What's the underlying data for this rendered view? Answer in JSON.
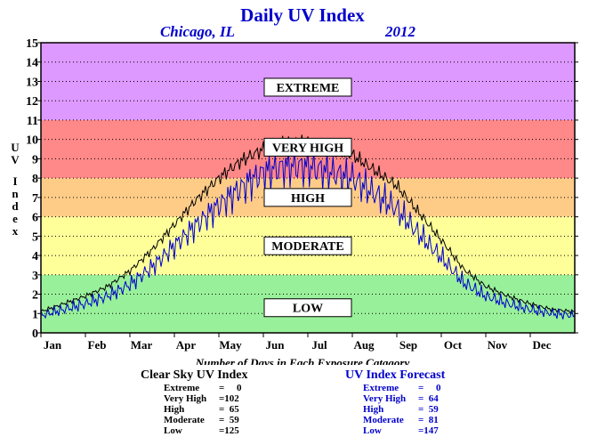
{
  "chart_data": {
    "type": "line",
    "title": "Daily UV Index",
    "subtitle_location": "Chicago, IL",
    "subtitle_year": "2012",
    "ylabel": "UV Index",
    "xlabel": "",
    "ylim": [
      0,
      15
    ],
    "yticks": [
      0,
      1,
      2,
      3,
      4,
      5,
      6,
      7,
      8,
      9,
      10,
      11,
      12,
      13,
      14,
      15
    ],
    "xticks": [
      "Jan",
      "Feb",
      "Mar",
      "Apr",
      "May",
      "Jun",
      "Jul",
      "Aug",
      "Sep",
      "Oct",
      "Nov",
      "Dec"
    ],
    "grid": "dotted horizontal",
    "bands": [
      {
        "label": "LOW",
        "from": 0,
        "to": 3,
        "color": "#99f09a",
        "label_y": 1.6
      },
      {
        "label": "MODERATE",
        "from": 3,
        "to": 6,
        "color": "#ffff99",
        "label_y": 5.6
      },
      {
        "label": "HIGH",
        "from": 6,
        "to": 8,
        "color": "#ffcc88",
        "label_y": 8.8
      },
      {
        "label": "VERY HIGH",
        "from": 8,
        "to": 11,
        "color": "#ff8888",
        "label_y": 12.0
      },
      {
        "label": "EXTREME",
        "from": 11,
        "to": 15,
        "color": "#dd99ff",
        "label_y": 16.2
      }
    ],
    "series": [
      {
        "name": "Clear Sky UV Index",
        "color": "#000000",
        "x_months": [
          0.0,
          0.5,
          1.0,
          1.5,
          2.0,
          2.5,
          3.0,
          3.5,
          4.0,
          4.5,
          5.0,
          5.5,
          6.0,
          6.5,
          7.0,
          7.5,
          8.0,
          8.5,
          9.0,
          9.5,
          10.0,
          10.5,
          11.0,
          11.5,
          12.0
        ],
        "y": [
          1.1,
          1.5,
          1.9,
          2.4,
          3.2,
          4.3,
          5.6,
          6.9,
          8.0,
          8.9,
          9.5,
          9.8,
          9.8,
          9.5,
          9.2,
          8.4,
          7.6,
          6.2,
          4.8,
          3.3,
          2.4,
          1.9,
          1.5,
          1.2,
          1.1
        ]
      },
      {
        "name": "UV Index Forecast",
        "color": "#0000cc",
        "x_months": [
          0.0,
          0.5,
          1.0,
          1.5,
          2.0,
          2.5,
          3.0,
          3.5,
          4.0,
          4.5,
          5.0,
          5.5,
          6.0,
          6.5,
          7.0,
          7.5,
          8.0,
          8.5,
          9.0,
          9.5,
          10.0,
          10.5,
          11.0,
          11.5,
          12.0
        ],
        "y": [
          0.9,
          1.2,
          1.5,
          1.9,
          2.5,
          3.4,
          4.5,
          5.6,
          6.6,
          7.5,
          8.3,
          8.6,
          8.6,
          8.3,
          8.0,
          7.2,
          6.4,
          5.1,
          3.9,
          2.6,
          1.9,
          1.5,
          1.2,
          1.0,
          0.9
        ]
      }
    ],
    "summary_title": "Number of Days in Each Exposure Catagory",
    "summary": [
      {
        "heading": "Clear Sky UV Index",
        "rows": [
          {
            "label": "Extreme",
            "value": "=     0"
          },
          {
            "label": "Very High",
            "value": "=102"
          },
          {
            "label": "High",
            "value": "=  65"
          },
          {
            "label": "Moderate",
            "value": "=  59"
          },
          {
            "label": "Low",
            "value": "=125"
          }
        ]
      },
      {
        "heading": "UV Index Forecast",
        "rows": [
          {
            "label": "Extreme",
            "value": "=     0"
          },
          {
            "label": "Very High",
            "value": "=  64"
          },
          {
            "label": "High",
            "value": "=  59"
          },
          {
            "label": "Moderate",
            "value": "=  81"
          },
          {
            "label": "Low",
            "value": "=147"
          }
        ]
      }
    ]
  }
}
